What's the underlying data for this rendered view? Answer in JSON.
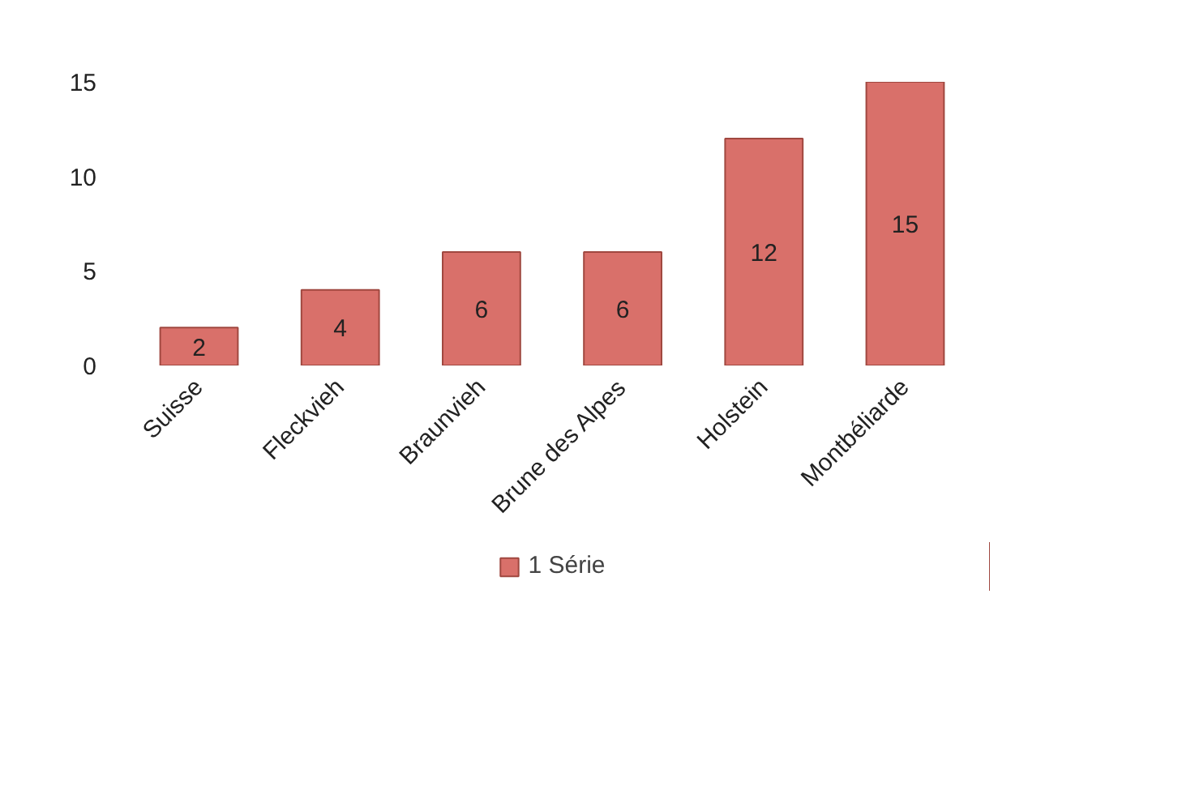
{
  "chart_data": {
    "type": "bar",
    "categories": [
      "Suisse",
      "Fleckvieh",
      "Braunvieh",
      "Brune des Alpes",
      "Holstein",
      "Montbéliarde"
    ],
    "series": [
      {
        "name": "1 Série",
        "color": "#d9706a",
        "values": [
          2,
          4,
          6,
          6,
          12,
          15
        ]
      }
    ],
    "ylim": [
      0,
      15
    ],
    "yticks": [
      0,
      5,
      10,
      15
    ],
    "grid": false,
    "legend": "bottom",
    "data_labels": true
  }
}
